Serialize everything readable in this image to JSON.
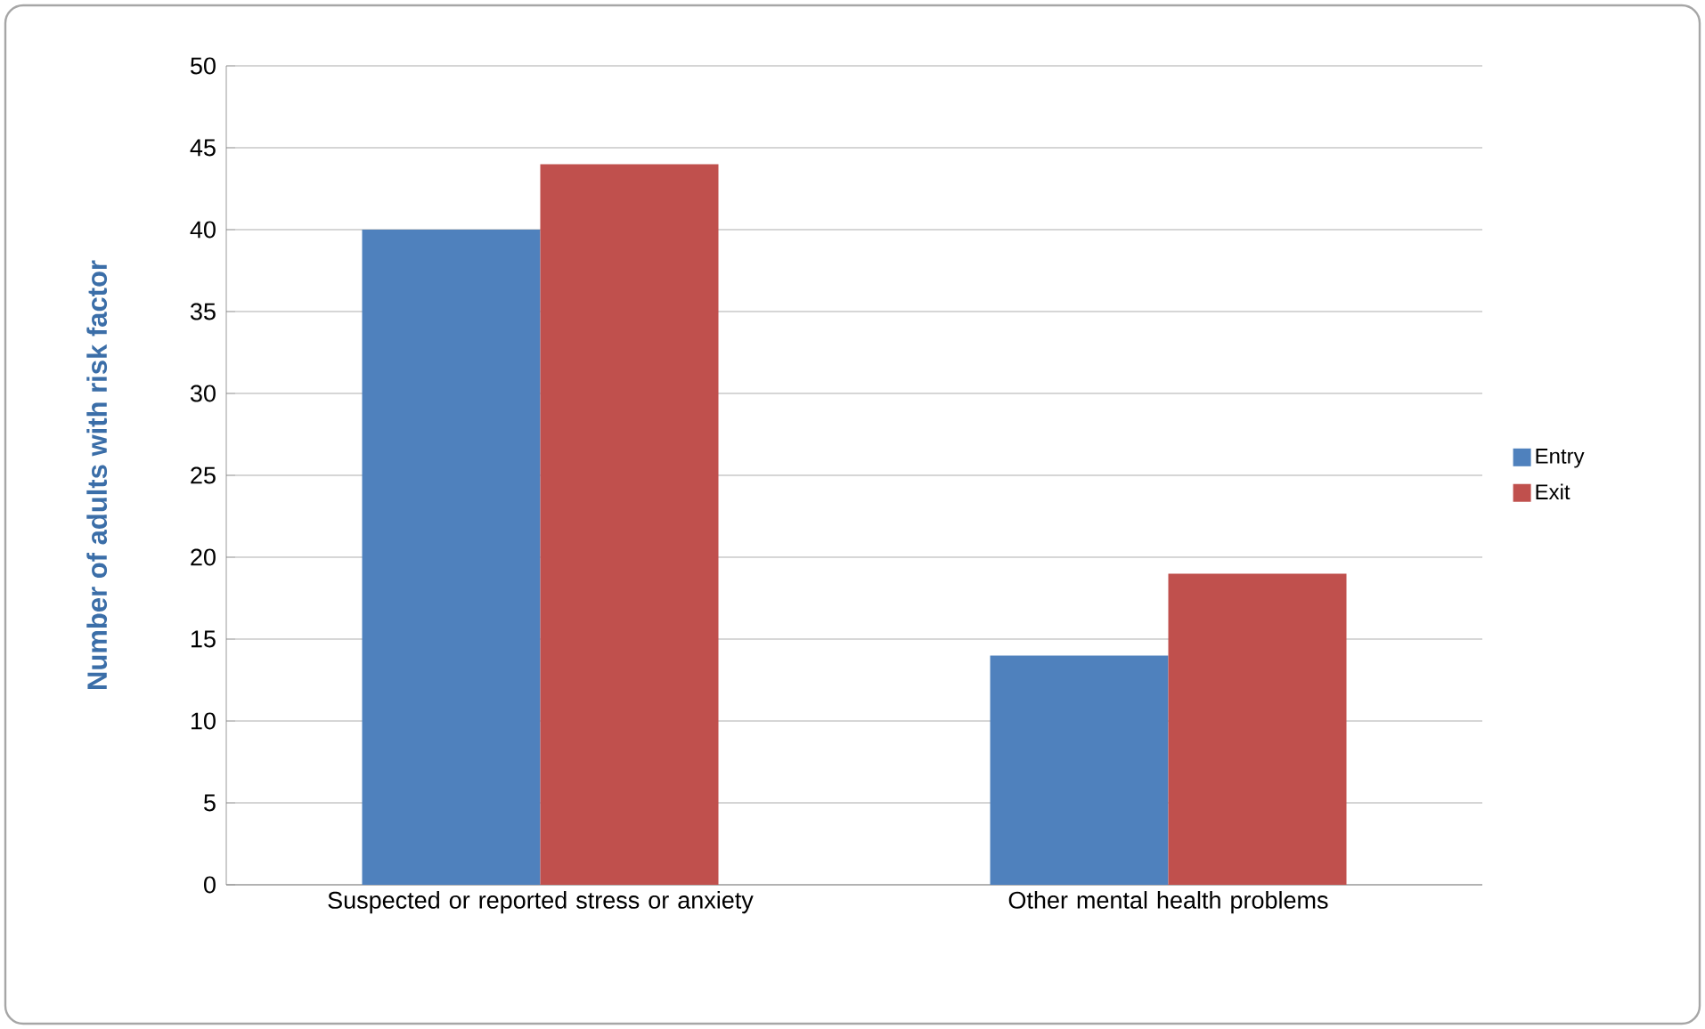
{
  "chart_data": {
    "type": "bar",
    "ylabel": "Number of adults with risk factor",
    "categories": [
      "Suspected or reported stress or anxiety",
      "Other mental health problems"
    ],
    "series": [
      {
        "name": "Entry",
        "color": "#4f81bd",
        "values": [
          40,
          14
        ]
      },
      {
        "name": "Exit",
        "color": "#c0504d",
        "values": [
          44,
          19
        ]
      }
    ],
    "ylim": [
      0,
      50
    ],
    "yticks": [
      0,
      5,
      10,
      15,
      20,
      25,
      30,
      35,
      40,
      45,
      50
    ],
    "grid": "y",
    "legend": "right"
  }
}
